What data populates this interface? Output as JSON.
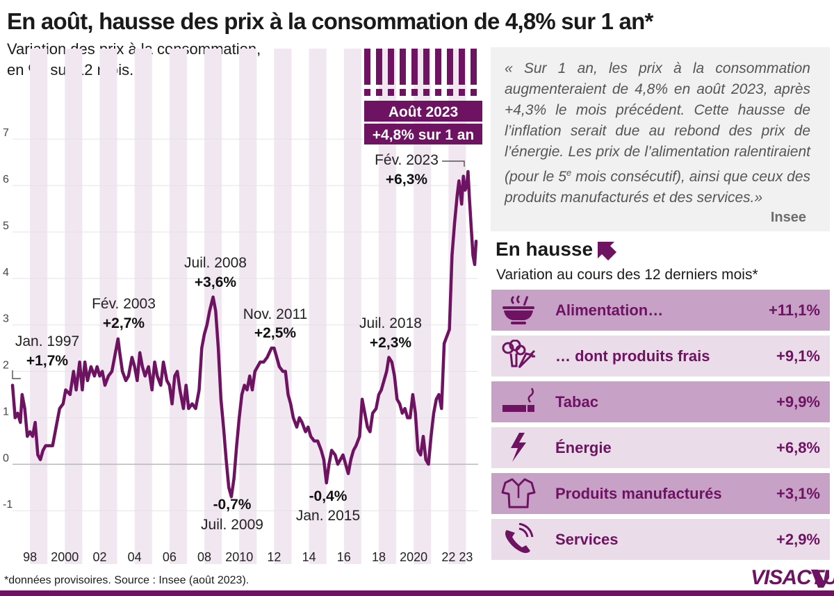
{
  "title": "En août, hausse des prix à la consommation de 4,8% sur 1 an*",
  "subtitle": {
    "line1": "Variation des prix à la consommation,",
    "line2": "en %, sur 12 mois."
  },
  "colors": {
    "accent": "#6e1262",
    "row_dark": "#c8a2c6",
    "row_light": "#ebdce9",
    "quote_bg": "#f1f1f1"
  },
  "chart_data": {
    "type": "line",
    "title": "Variation des prix à la consommation, en %, sur 12 mois.",
    "ylim": [
      -1.7,
      7.9
    ],
    "yticks": [
      -1,
      0,
      1,
      2,
      3,
      4,
      5,
      6,
      7
    ],
    "xlim": [
      1997.0,
      2023.7
    ],
    "xticks": [
      {
        "label": "98",
        "year": 1998.0
      },
      {
        "label": "2000",
        "year": 2000.0
      },
      {
        "label": "02",
        "year": 2002.0
      },
      {
        "label": "04",
        "year": 2004.0
      },
      {
        "label": "06",
        "year": 2006.0
      },
      {
        "label": "08",
        "year": 2008.0
      },
      {
        "label": "2010",
        "year": 2010.0
      },
      {
        "label": "12",
        "year": 2012.0
      },
      {
        "label": "14",
        "year": 2014.0
      },
      {
        "label": "16",
        "year": 2016.0
      },
      {
        "label": "18",
        "year": 2018.0
      },
      {
        "label": "2020",
        "year": 2020.0
      },
      {
        "label": "22",
        "year": 2022.0
      },
      {
        "label": "23",
        "year": 2023.0
      }
    ],
    "series": [
      {
        "name": "Variation sur 12 mois (%)",
        "points": [
          [
            1997.0,
            1.7
          ],
          [
            1997.15,
            1.0
          ],
          [
            1997.3,
            1.1
          ],
          [
            1997.45,
            0.9
          ],
          [
            1997.55,
            1.5
          ],
          [
            1997.7,
            1.2
          ],
          [
            1997.85,
            0.6
          ],
          [
            1998.0,
            0.7
          ],
          [
            1998.15,
            0.6
          ],
          [
            1998.3,
            0.9
          ],
          [
            1998.45,
            0.2
          ],
          [
            1998.6,
            0.1
          ],
          [
            1998.75,
            0.3
          ],
          [
            1998.9,
            0.4
          ],
          [
            1999.05,
            0.4
          ],
          [
            1999.3,
            0.4
          ],
          [
            1999.5,
            0.8
          ],
          [
            1999.7,
            1.2
          ],
          [
            1999.9,
            1.3
          ],
          [
            2000.05,
            1.6
          ],
          [
            2000.3,
            1.5
          ],
          [
            2000.5,
            2.0
          ],
          [
            2000.65,
            1.6
          ],
          [
            2000.85,
            2.2
          ],
          [
            2001.0,
            1.6
          ],
          [
            2001.15,
            2.2
          ],
          [
            2001.3,
            1.8
          ],
          [
            2001.5,
            2.1
          ],
          [
            2001.7,
            1.9
          ],
          [
            2001.85,
            2.1
          ],
          [
            2002.0,
            1.9
          ],
          [
            2002.15,
            2.0
          ],
          [
            2002.3,
            1.7
          ],
          [
            2002.5,
            1.9
          ],
          [
            2002.7,
            2.0
          ],
          [
            2002.85,
            2.3
          ],
          [
            2003.05,
            2.7
          ],
          [
            2003.15,
            2.4
          ],
          [
            2003.3,
            2.0
          ],
          [
            2003.5,
            1.8
          ],
          [
            2003.65,
            1.9
          ],
          [
            2003.85,
            2.3
          ],
          [
            2004.0,
            2.1
          ],
          [
            2004.15,
            1.8
          ],
          [
            2004.3,
            2.4
          ],
          [
            2004.45,
            2.1
          ],
          [
            2004.6,
            1.9
          ],
          [
            2004.8,
            2.1
          ],
          [
            2005.0,
            1.6
          ],
          [
            2005.15,
            2.2
          ],
          [
            2005.3,
            1.9
          ],
          [
            2005.5,
            1.7
          ],
          [
            2005.65,
            2.2
          ],
          [
            2005.85,
            1.8
          ],
          [
            2006.0,
            1.7
          ],
          [
            2006.15,
            1.3
          ],
          [
            2006.3,
            1.9
          ],
          [
            2006.45,
            2.0
          ],
          [
            2006.6,
            1.6
          ],
          [
            2006.8,
            1.2
          ],
          [
            2006.95,
            1.7
          ],
          [
            2007.1,
            1.2
          ],
          [
            2007.3,
            1.3
          ],
          [
            2007.5,
            1.2
          ],
          [
            2007.7,
            1.6
          ],
          [
            2007.85,
            2.5
          ],
          [
            2008.0,
            2.8
          ],
          [
            2008.15,
            3.0
          ],
          [
            2008.3,
            3.3
          ],
          [
            2008.5,
            3.6
          ],
          [
            2008.65,
            3.3
          ],
          [
            2008.8,
            2.5
          ],
          [
            2008.95,
            1.4
          ],
          [
            2009.1,
            0.8
          ],
          [
            2009.25,
            0.1
          ],
          [
            2009.4,
            -0.5
          ],
          [
            2009.55,
            -0.7
          ],
          [
            2009.7,
            -0.3
          ],
          [
            2009.85,
            0.4
          ],
          [
            2010.0,
            1.0
          ],
          [
            2010.15,
            1.5
          ],
          [
            2010.3,
            1.7
          ],
          [
            2010.45,
            1.6
          ],
          [
            2010.6,
            1.9
          ],
          [
            2010.75,
            1.6
          ],
          [
            2010.9,
            2.0
          ],
          [
            2011.05,
            2.1
          ],
          [
            2011.2,
            2.2
          ],
          [
            2011.4,
            2.2
          ],
          [
            2011.6,
            2.3
          ],
          [
            2011.85,
            2.5
          ],
          [
            2012.0,
            2.5
          ],
          [
            2012.15,
            2.3
          ],
          [
            2012.3,
            2.1
          ],
          [
            2012.5,
            2.0
          ],
          [
            2012.65,
            2.0
          ],
          [
            2012.8,
            1.5
          ],
          [
            2012.95,
            1.3
          ],
          [
            2013.1,
            1.0
          ],
          [
            2013.3,
            0.8
          ],
          [
            2013.45,
            1.0
          ],
          [
            2013.6,
            0.9
          ],
          [
            2013.8,
            0.7
          ],
          [
            2013.95,
            0.8
          ],
          [
            2014.1,
            0.6
          ],
          [
            2014.3,
            0.5
          ],
          [
            2014.5,
            0.5
          ],
          [
            2014.7,
            0.3
          ],
          [
            2014.85,
            0.1
          ],
          [
            2015.0,
            -0.4
          ],
          [
            2015.15,
            0.0
          ],
          [
            2015.3,
            0.3
          ],
          [
            2015.5,
            0.2
          ],
          [
            2015.65,
            0.0
          ],
          [
            2015.8,
            0.1
          ],
          [
            2015.95,
            0.2
          ],
          [
            2016.1,
            0.0
          ],
          [
            2016.25,
            -0.2
          ],
          [
            2016.4,
            0.1
          ],
          [
            2016.55,
            0.3
          ],
          [
            2016.7,
            0.4
          ],
          [
            2016.9,
            0.6
          ],
          [
            2017.05,
            1.4
          ],
          [
            2017.2,
            1.1
          ],
          [
            2017.35,
            0.8
          ],
          [
            2017.5,
            0.7
          ],
          [
            2017.65,
            1.1
          ],
          [
            2017.85,
            1.2
          ],
          [
            2018.0,
            1.5
          ],
          [
            2018.15,
            1.6
          ],
          [
            2018.3,
            1.8
          ],
          [
            2018.45,
            2.0
          ],
          [
            2018.58,
            2.3
          ],
          [
            2018.75,
            2.2
          ],
          [
            2018.9,
            1.9
          ],
          [
            2019.05,
            1.4
          ],
          [
            2019.2,
            1.3
          ],
          [
            2019.35,
            1.1
          ],
          [
            2019.5,
            1.2
          ],
          [
            2019.65,
            1.0
          ],
          [
            2019.8,
            1.0
          ],
          [
            2019.95,
            1.5
          ],
          [
            2020.1,
            1.1
          ],
          [
            2020.25,
            0.3
          ],
          [
            2020.4,
            0.2
          ],
          [
            2020.55,
            0.6
          ],
          [
            2020.7,
            0.1
          ],
          [
            2020.85,
            0.0
          ],
          [
            2021.0,
            0.6
          ],
          [
            2021.15,
            1.1
          ],
          [
            2021.3,
            1.4
          ],
          [
            2021.45,
            1.5
          ],
          [
            2021.6,
            1.2
          ],
          [
            2021.75,
            2.6
          ],
          [
            2021.95,
            2.8
          ],
          [
            2022.05,
            2.9
          ],
          [
            2022.2,
            4.5
          ],
          [
            2022.35,
            5.2
          ],
          [
            2022.5,
            5.8
          ],
          [
            2022.6,
            6.1
          ],
          [
            2022.75,
            5.6
          ],
          [
            2022.85,
            6.2
          ],
          [
            2022.95,
            5.9
          ],
          [
            2023.05,
            6.0
          ],
          [
            2023.12,
            6.3
          ],
          [
            2023.2,
            5.7
          ],
          [
            2023.3,
            5.1
          ],
          [
            2023.4,
            4.5
          ],
          [
            2023.5,
            4.3
          ],
          [
            2023.58,
            4.8
          ]
        ]
      }
    ],
    "annotations": [
      {
        "label": "Jan. 1997",
        "value": "+1,7%"
      },
      {
        "label": "Fév. 2003",
        "value": "+2,7%"
      },
      {
        "label": "Juil. 2008",
        "value": "+3,6%"
      },
      {
        "label": "Juil. 2009",
        "value": "-0,7%"
      },
      {
        "label": "Nov. 2011",
        "value": "+2,5%"
      },
      {
        "label": "Jan. 2015",
        "value": "-0,4%"
      },
      {
        "label": "Juil. 2018",
        "value": "+2,3%"
      },
      {
        "label": "Fév. 2023",
        "value": "+6,3%"
      }
    ],
    "highlight": {
      "label": "Août 2023",
      "value": "+4,8% sur 1 an"
    }
  },
  "quote": {
    "text": "« Sur 1 an, les prix à la consommation augmenteraient de 4,8% en août 2023, après +4,3% le mois précédent. Cette hausse de l’inflation serait due au rebond des prix de l’énergie. Les prix de l’alimentation ralentiraient (pour le 5",
    "sup": "e",
    "text_end": " mois consécutif), ainsi que ceux des produits manufacturés et des services.»",
    "source": "Insee"
  },
  "hausse": {
    "title": "En hausse",
    "subtitle": "Variation au cours des 12 derniers mois*",
    "rows": [
      {
        "icon": "bowl-icon",
        "label": "Alimentation…",
        "value": "+11,1%"
      },
      {
        "icon": "vegetables-icon",
        "label": "… dont produits frais",
        "value": "+9,1%"
      },
      {
        "icon": "cigarette-icon",
        "label": "Tabac",
        "value": "+9,9%"
      },
      {
        "icon": "lightning-icon",
        "label": "Énergie",
        "value": "+6,8%"
      },
      {
        "icon": "shirt-icon",
        "label": "Produits manufacturés",
        "value": "+3,1%"
      },
      {
        "icon": "phone-icon",
        "label": "Services",
        "value": "+2,9%"
      }
    ]
  },
  "footer": {
    "note": "*données provisoires. Source : Insee (août 2023).",
    "logo": "VISACTU"
  }
}
